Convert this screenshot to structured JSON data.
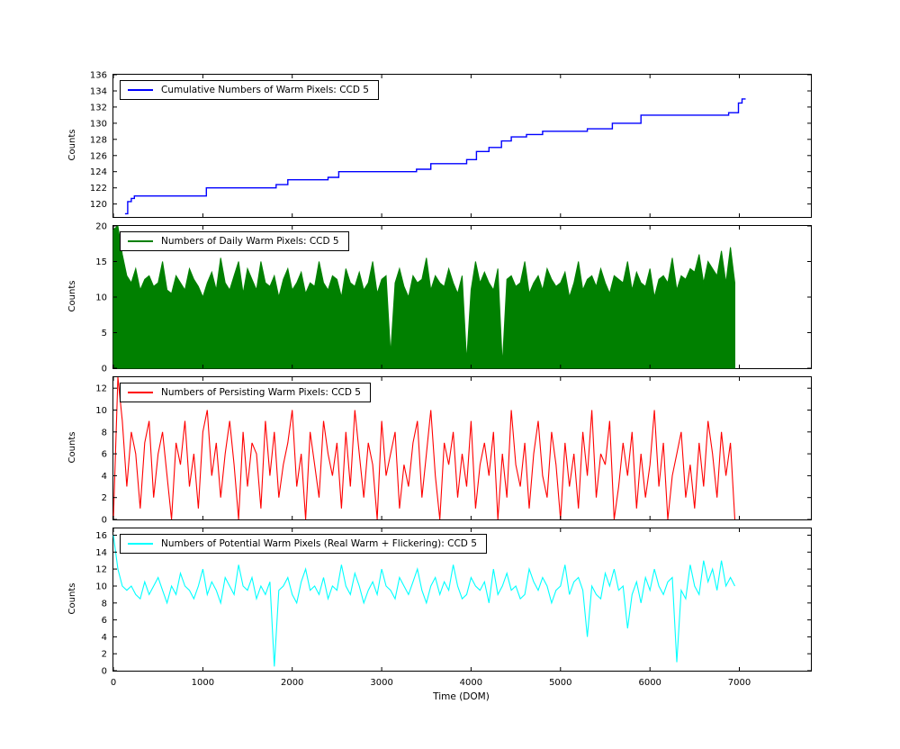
{
  "xlabel": "Time (DOM)",
  "ylabel": "Counts",
  "axes": {
    "xlim": [
      0,
      7800
    ],
    "xticks": [
      0,
      1000,
      2000,
      3000,
      4000,
      5000,
      6000,
      7000
    ]
  },
  "chart_data": [
    {
      "type": "step",
      "legend": "Cumulative Numbers of Warm Pixels: CCD 5",
      "color": "#0000ff",
      "ylim": [
        118.4,
        136
      ],
      "yticks": [
        120,
        122,
        124,
        126,
        128,
        130,
        132,
        134,
        136
      ],
      "points": [
        [
          130,
          118.8
        ],
        [
          160,
          120.3
        ],
        [
          200,
          120.7
        ],
        [
          235,
          121
        ],
        [
          1040,
          122
        ],
        [
          1820,
          122.4
        ],
        [
          1950,
          123
        ],
        [
          2400,
          123.3
        ],
        [
          2520,
          124
        ],
        [
          3390,
          124.3
        ],
        [
          3550,
          125
        ],
        [
          3950,
          125.5
        ],
        [
          4060,
          126.5
        ],
        [
          4200,
          127
        ],
        [
          4340,
          127.8
        ],
        [
          4450,
          128.3
        ],
        [
          4620,
          128.6
        ],
        [
          4800,
          129
        ],
        [
          5300,
          129.3
        ],
        [
          5580,
          130
        ],
        [
          5900,
          131
        ],
        [
          6880,
          131.3
        ],
        [
          6990,
          132.5
        ],
        [
          7030,
          133
        ],
        [
          7070,
          133
        ]
      ]
    },
    {
      "type": "area",
      "legend": "Numbers of Daily Warm Pixels: CCD 5",
      "color": "#008000",
      "ylim": [
        0,
        20
      ],
      "yticks": [
        0,
        5,
        10,
        15,
        20
      ],
      "x0": 0,
      "dx": 50,
      "values": [
        19.5,
        20,
        16,
        13,
        12,
        14,
        11,
        12.5,
        13,
        11.5,
        12,
        15,
        11,
        10.5,
        13,
        12,
        11,
        14,
        12.5,
        11.5,
        10,
        12,
        13.5,
        11,
        15.5,
        12,
        11,
        13,
        15,
        10.5,
        14,
        12.5,
        11,
        15,
        12,
        11.5,
        13,
        10,
        12.5,
        14,
        11,
        12,
        13.5,
        10.5,
        12,
        11.5,
        15,
        12,
        11,
        13,
        12.5,
        10,
        14,
        12,
        11.5,
        13.5,
        11,
        12,
        15,
        10.5,
        12.5,
        13,
        2,
        12,
        14,
        11.5,
        10,
        13,
        12,
        12.5,
        15.5,
        11,
        13,
        12,
        11.5,
        14,
        12,
        10.5,
        13,
        1,
        11,
        15,
        12,
        13.5,
        12,
        11,
        14,
        0.5,
        12.5,
        13,
        11.5,
        12,
        15,
        10.5,
        12,
        13,
        11,
        14,
        12.5,
        11.5,
        12,
        13.5,
        10,
        12,
        15,
        11,
        12.5,
        13,
        11.5,
        14,
        12,
        10.5,
        13,
        12.5,
        12,
        15,
        11,
        13.5,
        12,
        11.5,
        14,
        10,
        12.5,
        13,
        12,
        15.5,
        11,
        13,
        12.5,
        14,
        13.5,
        16,
        12,
        15,
        14,
        13,
        16.5,
        12,
        17,
        12
      ]
    },
    {
      "type": "line",
      "legend": "Numbers of Persisting Warm Pixels: CCD 5",
      "color": "#ff0000",
      "ylim": [
        0,
        13
      ],
      "yticks": [
        0,
        2,
        4,
        6,
        8,
        10,
        12
      ],
      "x0": 0,
      "dx": 50,
      "values": [
        0,
        13,
        9,
        3,
        8,
        6,
        1,
        7,
        9,
        2,
        6,
        8,
        4,
        0,
        7,
        5,
        9,
        3,
        6,
        1,
        8,
        10,
        4,
        7,
        2,
        6,
        9,
        5,
        0,
        8,
        3,
        7,
        6,
        1,
        9,
        4,
        8,
        2,
        5,
        7,
        10,
        3,
        6,
        0,
        8,
        5,
        2,
        9,
        6,
        4,
        7,
        1,
        8,
        3,
        10,
        6,
        2,
        7,
        5,
        0,
        9,
        4,
        6,
        8,
        1,
        5,
        3,
        7,
        9,
        2,
        6,
        10,
        4,
        0,
        7,
        5,
        8,
        2,
        6,
        3,
        9,
        1,
        5,
        7,
        4,
        8,
        0,
        6,
        2,
        10,
        5,
        3,
        7,
        1,
        6,
        9,
        4,
        2,
        8,
        5,
        0,
        7,
        3,
        6,
        1,
        8,
        4,
        10,
        2,
        6,
        5,
        9,
        0,
        3,
        7,
        4,
        8,
        1,
        6,
        2,
        5,
        10,
        3,
        7,
        0,
        4,
        6,
        8,
        2,
        5,
        1,
        7,
        3,
        9,
        6,
        2,
        8,
        4,
        7,
        0
      ]
    },
    {
      "type": "line",
      "legend": "Numbers of Potential Warm Pixels (Real Warm + Flickering): CCD 5",
      "color": "#00ffff",
      "ylim": [
        0,
        16.8
      ],
      "yticks": [
        0,
        2,
        4,
        6,
        8,
        10,
        12,
        14,
        16
      ],
      "x0": 0,
      "dx": 50,
      "values": [
        16,
        12,
        10,
        9.5,
        10,
        9,
        8.5,
        10.5,
        9,
        10,
        11,
        9.5,
        8,
        10,
        9,
        11.5,
        10,
        9.5,
        8.5,
        10,
        12,
        9,
        10.5,
        9.5,
        8,
        11,
        10,
        9,
        12.5,
        10,
        9.5,
        11,
        8.5,
        10,
        9,
        10.5,
        0.5,
        9.5,
        10,
        11,
        9,
        8,
        10.5,
        12,
        9.5,
        10,
        9,
        11,
        8.5,
        10,
        9.5,
        12.5,
        10,
        9,
        11.5,
        10,
        8,
        9.5,
        10.5,
        9,
        12,
        10,
        9.5,
        8.5,
        11,
        10,
        9,
        10.5,
        12,
        9.5,
        8,
        10,
        11,
        9,
        10.5,
        9.5,
        12.5,
        10,
        8.5,
        9,
        11,
        10,
        9.5,
        10.5,
        8,
        12,
        9,
        10,
        11.5,
        9.5,
        10,
        8.5,
        9,
        12,
        10.5,
        9.5,
        11,
        10,
        8,
        9.5,
        10,
        12.5,
        9,
        10.5,
        11,
        9.5,
        4,
        10,
        9,
        8.5,
        11.5,
        10,
        12,
        9.5,
        10,
        5,
        9,
        10.5,
        8,
        11,
        9.5,
        12,
        10,
        9,
        10.5,
        11,
        1,
        9.5,
        8.5,
        12.5,
        10,
        9,
        13,
        10.5,
        12,
        9.5,
        13,
        10,
        11,
        10
      ]
    }
  ]
}
